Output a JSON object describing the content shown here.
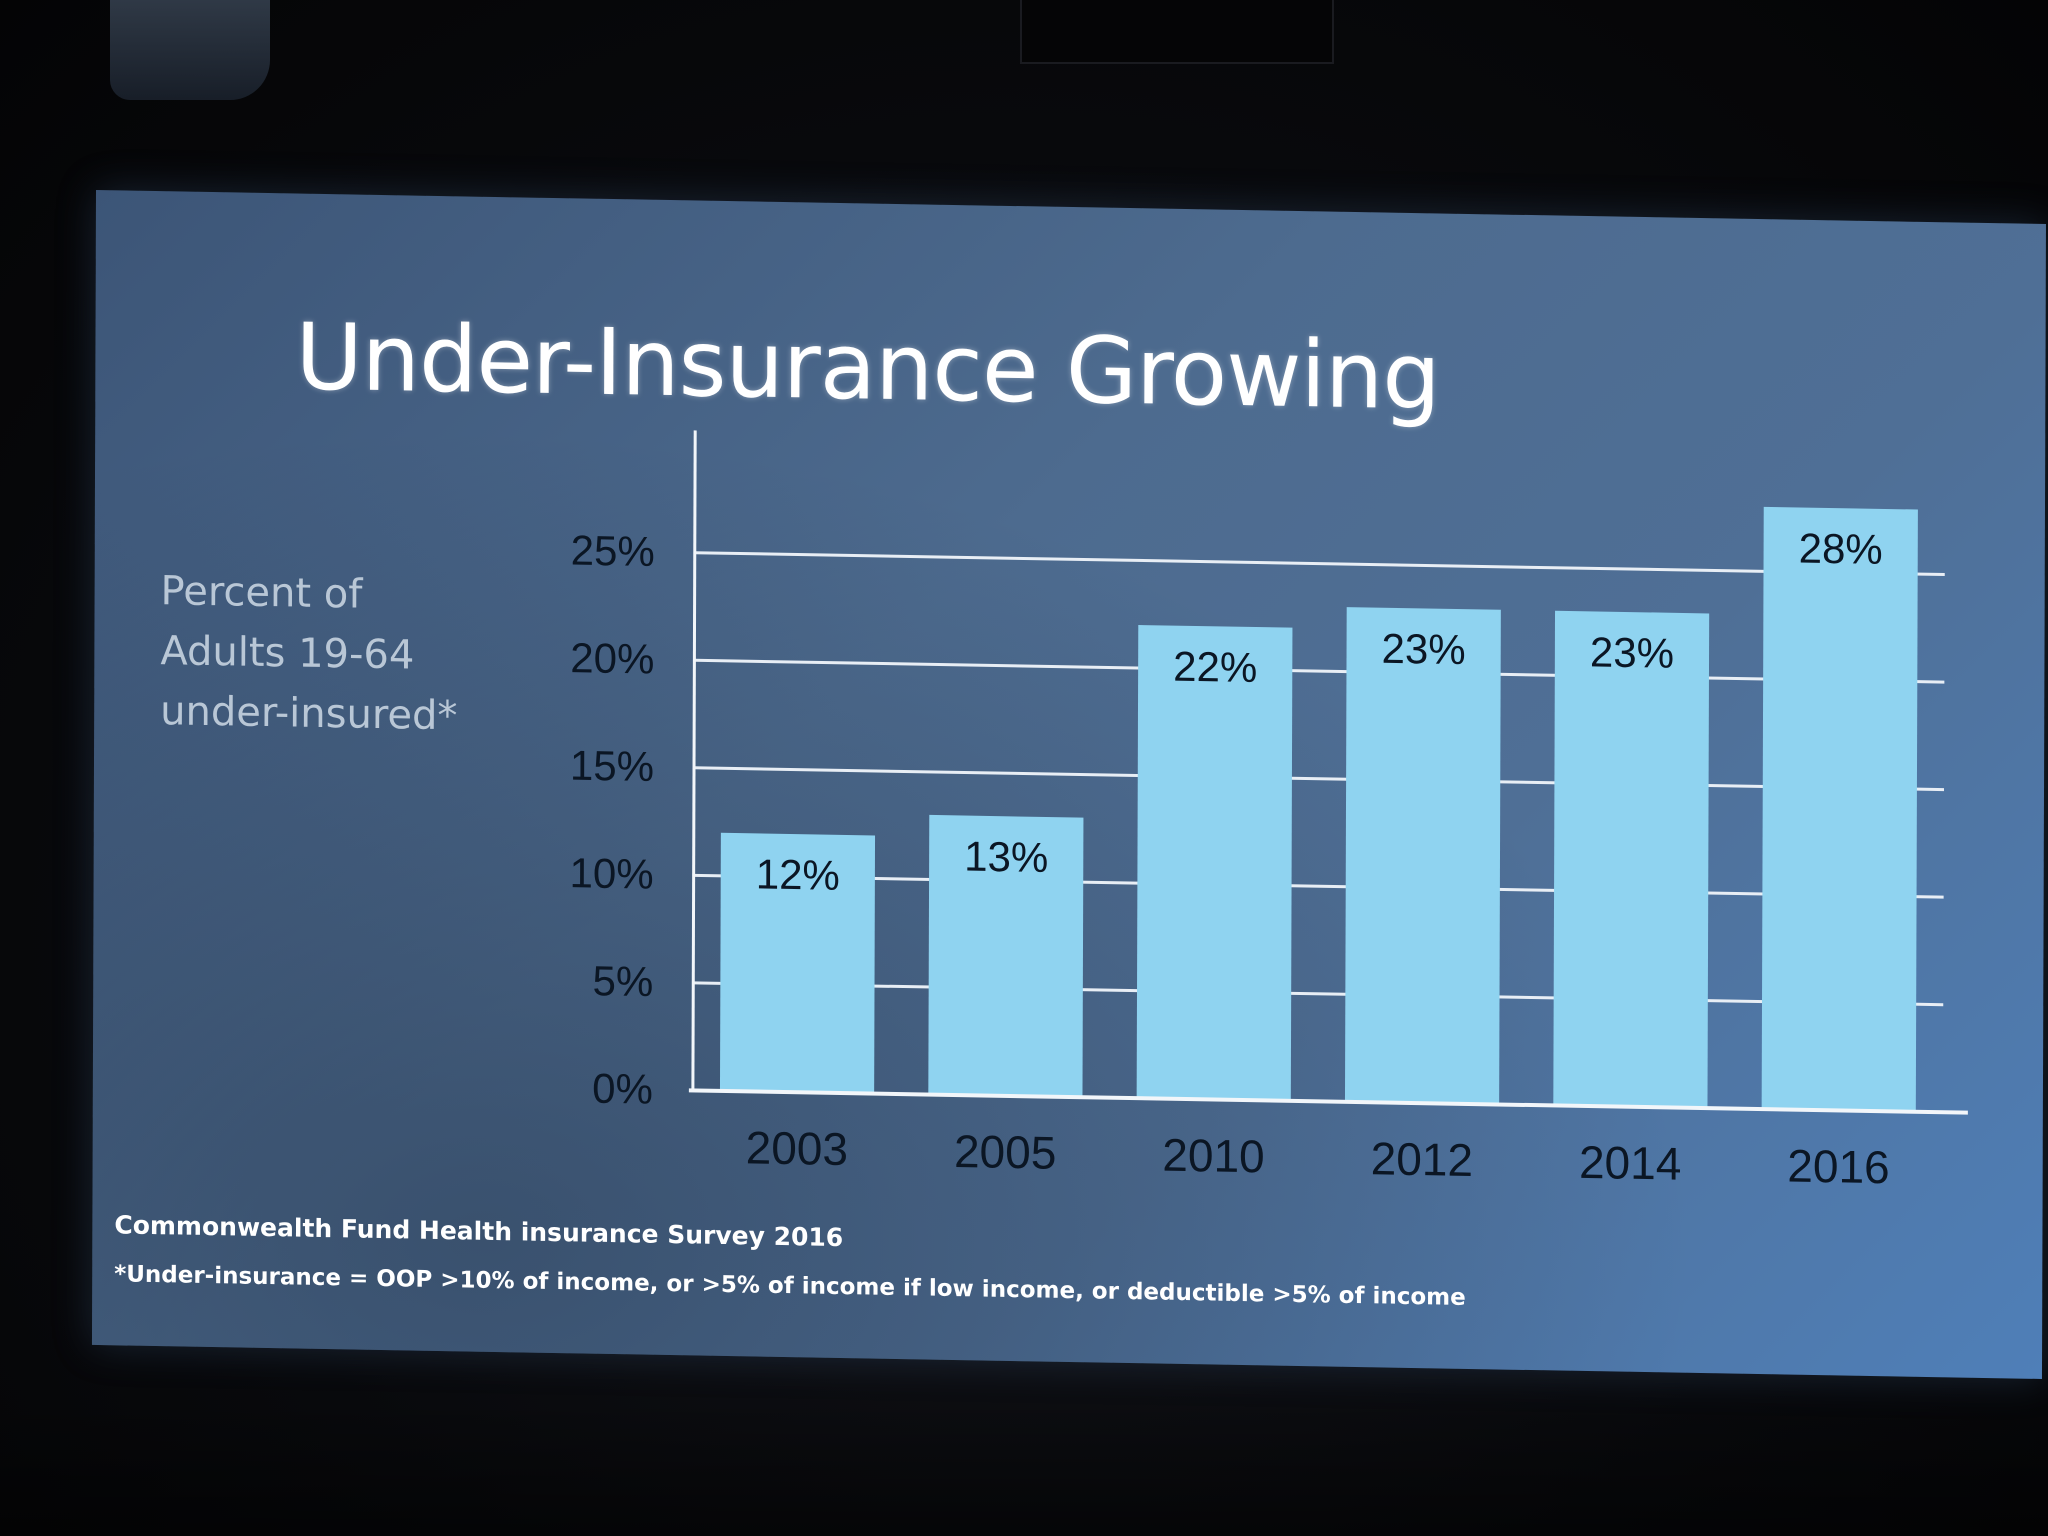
{
  "slide": {
    "title": "Under-Insurance Growing",
    "y_caption": [
      "Percent of",
      "Adults 19-64",
      "under-insured*"
    ],
    "source": "Commonwealth Fund Health insurance Survey 2016",
    "definition": "*Under-insurance = OOP >10% of income, or >5% of income if low income, or deductible >5% of income"
  },
  "chart_data": {
    "type": "bar",
    "title": "Under-Insurance Growing",
    "ylabel": "Percent of Adults 19-64 under-insured*",
    "xlabel": "",
    "categories": [
      "2003",
      "2005",
      "2010",
      "2012",
      "2014",
      "2016"
    ],
    "values": [
      12,
      13,
      22,
      23,
      23,
      28
    ],
    "data_labels": [
      "12%",
      "13%",
      "22%",
      "23%",
      "23%",
      "28%"
    ],
    "ylim": [
      0,
      25
    ],
    "yticks": [
      0,
      5,
      10,
      15,
      20,
      25
    ],
    "ytick_labels": [
      "0%",
      "5%",
      "10%",
      "15%",
      "20%",
      "25%"
    ],
    "grid": true,
    "colors": {
      "bar": "#8fd3f0",
      "grid": "#e8eef5",
      "axis": "#f2f6fa",
      "text": "#0b1624",
      "tick_text": "#0b1624"
    }
  }
}
